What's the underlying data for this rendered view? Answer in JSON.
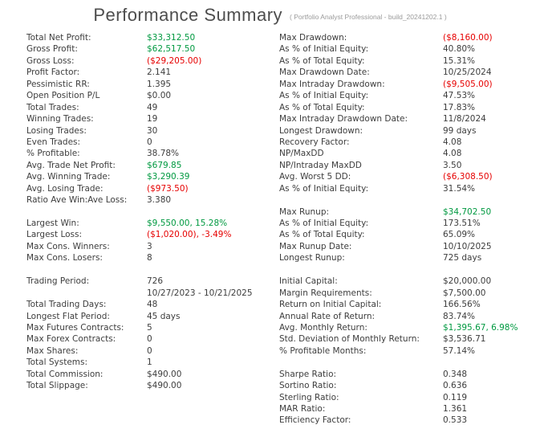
{
  "header": {
    "title": "Performance Summary",
    "subtitle": "( Portfolio Analyst Professional - build_20241202.1 )"
  },
  "colors": {
    "positive_value": "#009940",
    "negative_value": "#e60000",
    "text": "#3d3d3d",
    "title": "#4d4d4d",
    "subtitle": "#9a9a9a"
  },
  "left_column": {
    "rows": [
      {
        "label": "Total Net Profit:",
        "value": "$33,312.50",
        "tone": "pos"
      },
      {
        "label": "Gross Profit:",
        "value": "$62,517.50",
        "tone": "pos"
      },
      {
        "label": "Gross Loss:",
        "value": "($29,205.00)",
        "tone": "neg"
      },
      {
        "label": "Profit Factor:",
        "value": "2.141",
        "tone": ""
      },
      {
        "label": "Pessimistic RR:",
        "value": "1.395",
        "tone": ""
      },
      {
        "label": "Open Position P/L",
        "value": "$0.00",
        "tone": ""
      },
      {
        "label": "Total Trades:",
        "value": "49",
        "tone": ""
      },
      {
        "label": "Winning Trades:",
        "value": "19",
        "tone": ""
      },
      {
        "label": "Losing Trades:",
        "value": "30",
        "tone": ""
      },
      {
        "label": "Even Trades:",
        "value": "0",
        "tone": ""
      },
      {
        "label": "% Profitable:",
        "value": "38.78%",
        "tone": ""
      },
      {
        "label": "Avg. Trade Net Profit:",
        "value": "$679.85",
        "tone": "pos"
      },
      {
        "label": "Avg. Winning Trade:",
        "value": "$3,290.39",
        "tone": "pos"
      },
      {
        "label": "Avg. Losing Trade:",
        "value": "($973.50)",
        "tone": "neg"
      },
      {
        "label": "Ratio Ave Win:Ave Loss:",
        "value": "3.380",
        "tone": ""
      },
      {
        "label": "",
        "value": "",
        "tone": ""
      },
      {
        "label": "Largest Win:",
        "value": "$9,550.00, 15.28%",
        "tone": "pos"
      },
      {
        "label": "Largest Loss:",
        "value": "($1,020.00), -3.49%",
        "tone": "neg"
      },
      {
        "label": "Max Cons. Winners:",
        "value": "3",
        "tone": ""
      },
      {
        "label": "Max Cons. Losers:",
        "value": "8",
        "tone": ""
      },
      {
        "label": "",
        "value": "",
        "tone": ""
      },
      {
        "label": "Trading Period:",
        "value": "726",
        "tone": ""
      },
      {
        "label": "",
        "value": "10/27/2023 - 10/21/2025",
        "tone": ""
      },
      {
        "label": "Total Trading Days:",
        "value": "48",
        "tone": ""
      },
      {
        "label": "Longest Flat Period:",
        "value": "45 days",
        "tone": ""
      },
      {
        "label": "Max Futures Contracts:",
        "value": "5",
        "tone": ""
      },
      {
        "label": "Max Forex Contracts:",
        "value": "0",
        "tone": ""
      },
      {
        "label": "Max Shares:",
        "value": "0",
        "tone": ""
      },
      {
        "label": "Total Systems:",
        "value": "1",
        "tone": ""
      },
      {
        "label": "Total Commission:",
        "value": "$490.00",
        "tone": ""
      },
      {
        "label": "Total Slippage:",
        "value": "$490.00",
        "tone": ""
      }
    ]
  },
  "right_column": {
    "rows": [
      {
        "label": "Max Drawdown:",
        "value": "($8,160.00)",
        "tone": "neg"
      },
      {
        "label": "As % of Initial Equity:",
        "value": "40.80%",
        "tone": ""
      },
      {
        "label": "As % of Total Equity:",
        "value": "15.31%",
        "tone": ""
      },
      {
        "label": "Max Drawdown Date:",
        "value": "10/25/2024",
        "tone": ""
      },
      {
        "label": "Max Intraday Drawdown:",
        "value": "($9,505.00)",
        "tone": "neg"
      },
      {
        "label": "As % of Initial Equity:",
        "value": "47.53%",
        "tone": ""
      },
      {
        "label": "As % of Total Equity:",
        "value": "17.83%",
        "tone": ""
      },
      {
        "label": "Max Intraday Drawdown Date:",
        "value": "11/8/2024",
        "tone": ""
      },
      {
        "label": "Longest Drawdown:",
        "value": "99 days",
        "tone": ""
      },
      {
        "label": "Recovery Factor:",
        "value": "4.08",
        "tone": ""
      },
      {
        "label": "NP/MaxDD",
        "value": "4.08",
        "tone": ""
      },
      {
        "label": "NP/Intraday MaxDD",
        "value": "3.50",
        "tone": ""
      },
      {
        "label": "Avg. Worst 5 DD:",
        "value": "($6,308.50)",
        "tone": "neg"
      },
      {
        "label": "As % of Initial Equity:",
        "value": "31.54%",
        "tone": ""
      },
      {
        "label": "",
        "value": "",
        "tone": ""
      },
      {
        "label": "Max Runup:",
        "value": "$34,702.50",
        "tone": "pos"
      },
      {
        "label": "As % of Initial Equity:",
        "value": "173.51%",
        "tone": ""
      },
      {
        "label": "As % of Total Equity:",
        "value": "65.09%",
        "tone": ""
      },
      {
        "label": "Max Runup Date:",
        "value": "10/10/2025",
        "tone": ""
      },
      {
        "label": "Longest Runup:",
        "value": "725 days",
        "tone": ""
      },
      {
        "label": "",
        "value": "",
        "tone": ""
      },
      {
        "label": "Initial Capital:",
        "value": "$20,000.00",
        "tone": ""
      },
      {
        "label": "Margin Requirements:",
        "value": "$7,500.00",
        "tone": ""
      },
      {
        "label": "Return on Initial Capital:",
        "value": "166.56%",
        "tone": ""
      },
      {
        "label": "Annual Rate of Return:",
        "value": "83.74%",
        "tone": ""
      },
      {
        "label": "Avg. Monthly Return:",
        "value": "$1,395.67, 6.98%",
        "tone": "pos"
      },
      {
        "label": "Std. Deviation of Monthly Return:",
        "value": "$3,536.71",
        "tone": ""
      },
      {
        "label": "% Profitable Months:",
        "value": "57.14%",
        "tone": ""
      },
      {
        "label": "",
        "value": "",
        "tone": ""
      },
      {
        "label": "Sharpe Ratio:",
        "value": "0.348",
        "tone": ""
      },
      {
        "label": "Sortino Ratio:",
        "value": "0.636",
        "tone": ""
      },
      {
        "label": "Sterling Ratio:",
        "value": "0.119",
        "tone": ""
      },
      {
        "label": "MAR Ratio:",
        "value": "1.361",
        "tone": ""
      },
      {
        "label": "Efficiency Factor:",
        "value": "0.533",
        "tone": ""
      }
    ]
  }
}
